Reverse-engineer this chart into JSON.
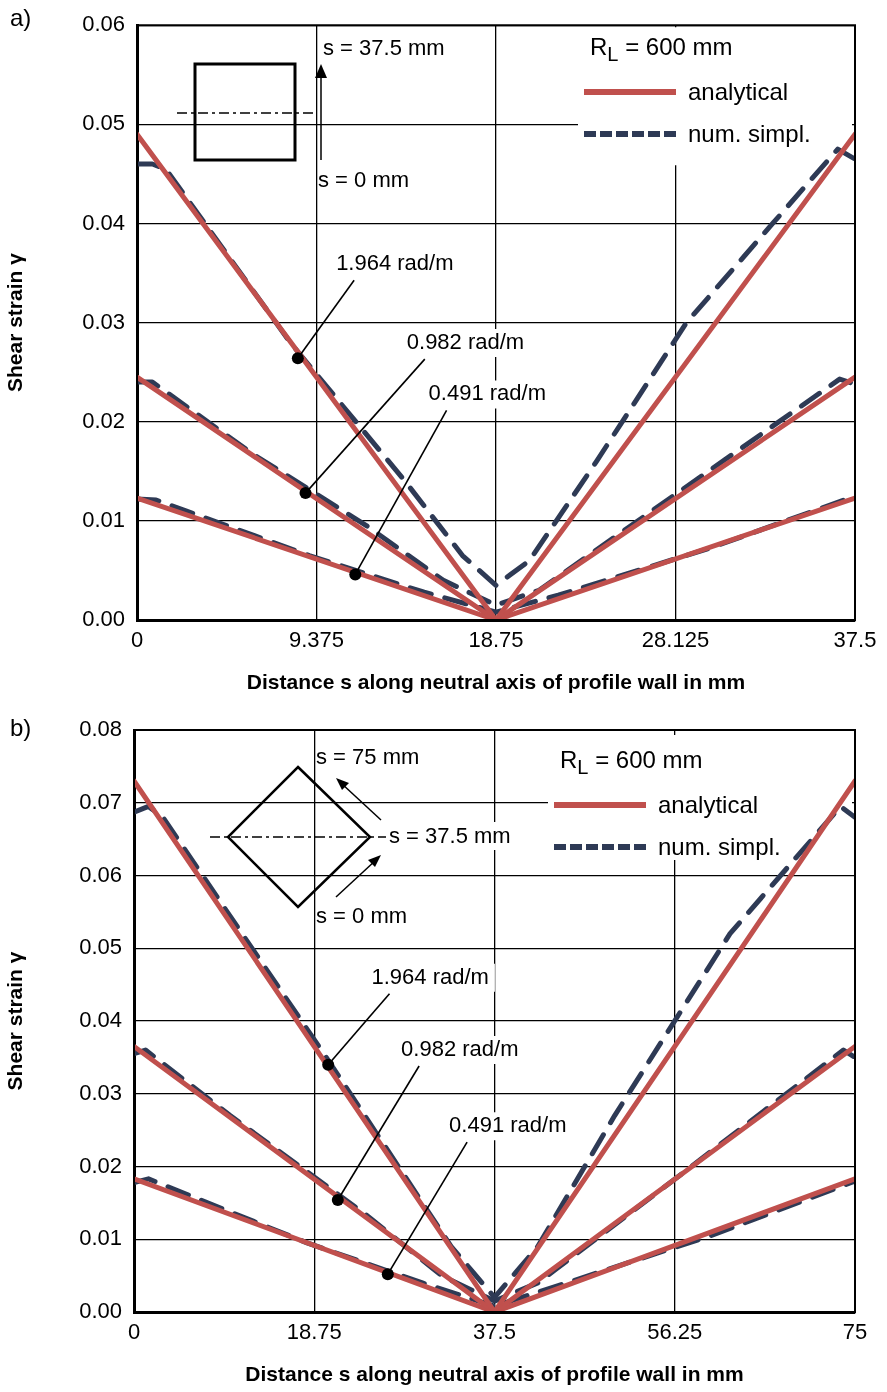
{
  "chart_data": [
    {
      "type": "line",
      "title": "a)",
      "xlabel": "Distance s along neutral axis of profile wall in mm",
      "ylabel": "Shear strain γ",
      "legend_title": "R$_{L}$ = 600 mm",
      "legend": "top right",
      "grid": true,
      "xlim": [
        0,
        37.5
      ],
      "xticks": [
        0,
        9.375,
        18.75,
        28.125,
        37.5
      ],
      "ylim": [
        0,
        0.06
      ],
      "yticks": [
        {
          "value": 0,
          "label": "0.00"
        },
        0.01,
        0.02,
        0.03,
        0.04,
        0.05,
        0.06
      ],
      "series": [
        {
          "name": "analytical",
          "color": "#c0504d",
          "line_style": "solid",
          "x": [
            0,
            18.75,
            37.5
          ],
          "values": [
            0.049,
            0,
            0.049
          ]
        },
        {
          "color": "#c0504d",
          "line_style": "solid",
          "x": [
            0,
            18.75,
            37.5
          ],
          "values": [
            0.0245,
            0,
            0.0245
          ]
        },
        {
          "color": "#c0504d",
          "line_style": "solid",
          "x": [
            0,
            18.75,
            37.5
          ],
          "values": [
            0.0123,
            0,
            0.0123
          ]
        },
        {
          "name": "num. simpl.",
          "color": "#2e3a55",
          "line_style": "dashed",
          "x": [
            0,
            0.8,
            1.5,
            8,
            14,
            17,
            18.75,
            20.5,
            24,
            28.7,
            33.2,
            36.6,
            37.5
          ],
          "values": [
            0.046,
            0.046,
            0.0455,
            0.028,
            0.014,
            0.0065,
            0.0035,
            0.006,
            0.016,
            0.03,
            0.04,
            0.0475,
            0.0465
          ]
        },
        {
          "color": "#2e3a55",
          "line_style": "dashed",
          "x": [
            0,
            0.8,
            6,
            12,
            16,
            18.75,
            21,
            28,
            36.7,
            37.5
          ],
          "values": [
            0.024,
            0.024,
            0.0168,
            0.0095,
            0.004,
            0.0015,
            0.003,
            0.0125,
            0.0243,
            0.0238
          ]
        },
        {
          "color": "#2e3a55",
          "line_style": "dashed",
          "x": [
            0,
            1,
            9,
            15,
            18.75,
            22,
            30,
            37.5
          ],
          "values": [
            0.0122,
            0.0121,
            0.0065,
            0.0028,
            0.0008,
            0.0025,
            0.0073,
            0.0125
          ]
        }
      ],
      "annotations": [
        "s = 37.5 mm",
        "s = 0 mm",
        {
          "text": "1.964 rad/m",
          "x": 8.4,
          "y": 0.0264
        },
        {
          "text": "0.982 rad/m",
          "x": 8.8,
          "y": 0.0128
        },
        {
          "text": "0.491 rad/m",
          "x": 11.4,
          "y": 0.0046
        }
      ]
    },
    {
      "type": "line",
      "title": "b)",
      "xlabel": "Distance s along neutral axis of profile wall in mm",
      "ylabel": "Shear strain γ",
      "legend_title": "R$_{L}$ = 600 mm",
      "legend": "top right",
      "grid": true,
      "xlim": [
        0,
        75
      ],
      "xticks": [
        0,
        18.75,
        37.5,
        56.25,
        75
      ],
      "ylim": [
        0,
        0.08
      ],
      "yticks": [
        {
          "value": 0,
          "label": "0.00"
        },
        0.01,
        0.02,
        0.03,
        0.04,
        0.05,
        0.06,
        0.07,
        0.08
      ],
      "series": [
        {
          "name": "analytical",
          "color": "#c0504d",
          "line_style": "solid",
          "x": [
            0,
            37.5,
            75
          ],
          "values": [
            0.073,
            0,
            0.073
          ]
        },
        {
          "color": "#c0504d",
          "line_style": "solid",
          "x": [
            0,
            37.5,
            75
          ],
          "values": [
            0.0365,
            0,
            0.0365
          ]
        },
        {
          "color": "#c0504d",
          "line_style": "solid",
          "x": [
            0,
            37.5,
            75
          ],
          "values": [
            0.0183,
            0,
            0.0183
          ]
        },
        {
          "name": "num. simpl.",
          "color": "#2e3a55",
          "line_style": "dashed",
          "x": [
            0,
            1.5,
            3,
            20,
            33,
            37.5,
            42,
            50,
            62,
            73.5,
            75
          ],
          "values": [
            0.0687,
            0.0695,
            0.068,
            0.035,
            0.009,
            0.002,
            0.009,
            0.027,
            0.052,
            0.0695,
            0.068
          ]
        },
        {
          "color": "#2e3a55",
          "line_style": "dashed",
          "x": [
            0,
            1.2,
            10,
            24,
            32,
            37.5,
            42,
            56,
            73.8,
            75
          ],
          "values": [
            0.0355,
            0.036,
            0.027,
            0.0135,
            0.005,
            0.0015,
            0.004,
            0.018,
            0.036,
            0.035
          ]
        },
        {
          "color": "#2e3a55",
          "line_style": "dashed",
          "x": [
            0,
            1.5,
            18,
            30,
            37.5,
            45,
            60,
            75
          ],
          "values": [
            0.0178,
            0.0183,
            0.0095,
            0.004,
            0.0008,
            0.004,
            0.0105,
            0.018
          ]
        }
      ],
      "annotations": [
        "s = 75 mm",
        "s = 37.5 mm",
        "s = 0 mm",
        {
          "text": "1.964 rad/m",
          "x": 20.2,
          "y": 0.034
        },
        {
          "text": "0.982 rad/m",
          "x": 21.2,
          "y": 0.0154
        },
        {
          "text": "0.491 rad/m",
          "x": 26.4,
          "y": 0.0052
        }
      ]
    }
  ]
}
